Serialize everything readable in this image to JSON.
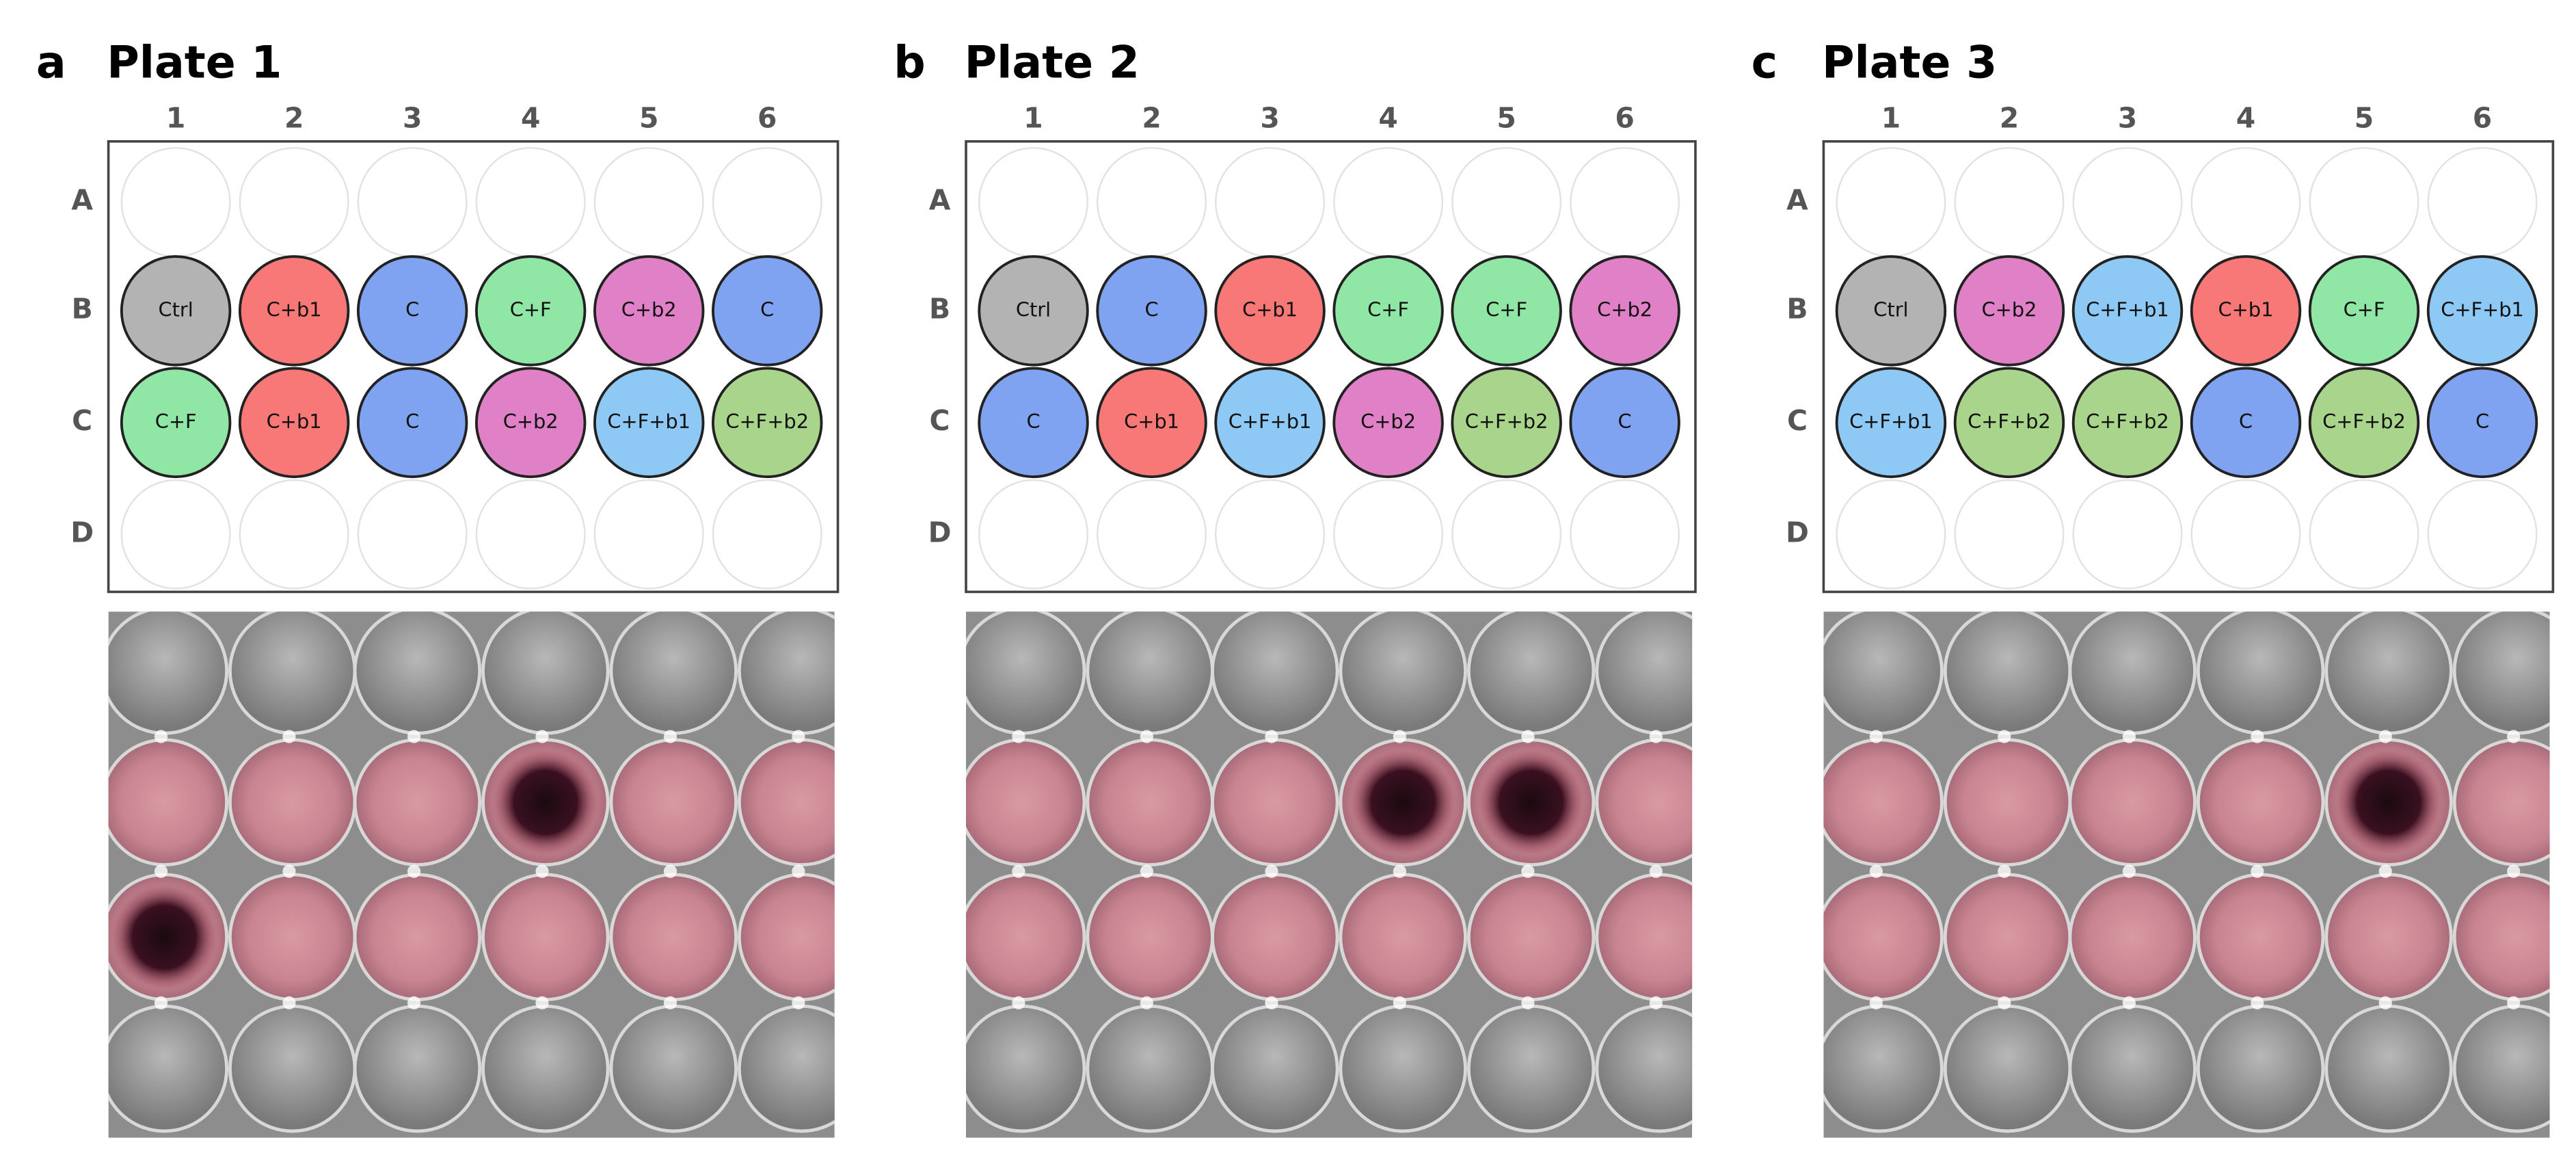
{
  "panels": [
    {
      "letter": "a",
      "title": "Plate 1",
      "columns": [
        "1",
        "2",
        "3",
        "4",
        "5",
        "6"
      ],
      "rows": [
        {
          "label": "A",
          "wells": []
        },
        {
          "label": "B",
          "wells": [
            {
              "label": "Ctrl",
              "color": "#b3b3b3"
            },
            {
              "label": "C+b1",
              "color": "#f87878"
            },
            {
              "label": "C",
              "color": "#7fa3f0"
            },
            {
              "label": "C+F",
              "color": "#8fe6a5"
            },
            {
              "label": "C+b2",
              "color": "#e080c6"
            },
            {
              "label": "C",
              "color": "#7fa3f0"
            }
          ]
        },
        {
          "label": "C",
          "wells": [
            {
              "label": "C+F",
              "color": "#8fe6a5"
            },
            {
              "label": "C+b1",
              "color": "#f87878"
            },
            {
              "label": "C",
              "color": "#7fa3f0"
            },
            {
              "label": "C+b2",
              "color": "#e080c6"
            },
            {
              "label": "C+F+b1",
              "color": "#8ec9f6"
            },
            {
              "label": "C+F+b2",
              "color": "#a9d48b"
            }
          ]
        },
        {
          "label": "D",
          "wells": []
        }
      ]
    },
    {
      "letter": "b",
      "title": "Plate 2",
      "columns": [
        "1",
        "2",
        "3",
        "4",
        "5",
        "6"
      ],
      "rows": [
        {
          "label": "A",
          "wells": []
        },
        {
          "label": "B",
          "wells": [
            {
              "label": "Ctrl",
              "color": "#b3b3b3"
            },
            {
              "label": "C",
              "color": "#7fa3f0"
            },
            {
              "label": "C+b1",
              "color": "#f87878"
            },
            {
              "label": "C+F",
              "color": "#8fe6a5"
            },
            {
              "label": "C+F",
              "color": "#8fe6a5"
            },
            {
              "label": "C+b2",
              "color": "#e080c6"
            }
          ]
        },
        {
          "label": "C",
          "wells": [
            {
              "label": "C",
              "color": "#7fa3f0"
            },
            {
              "label": "C+b1",
              "color": "#f87878"
            },
            {
              "label": "C+F+b1",
              "color": "#8ec9f6"
            },
            {
              "label": "C+b2",
              "color": "#e080c6"
            },
            {
              "label": "C+F+b2",
              "color": "#a9d48b"
            },
            {
              "label": "C",
              "color": "#7fa3f0"
            }
          ]
        },
        {
          "label": "D",
          "wells": []
        }
      ]
    },
    {
      "letter": "c",
      "title": "Plate 3",
      "columns": [
        "1",
        "2",
        "3",
        "4",
        "5",
        "6"
      ],
      "rows": [
        {
          "label": "A",
          "wells": []
        },
        {
          "label": "B",
          "wells": [
            {
              "label": "Ctrl",
              "color": "#b3b3b3"
            },
            {
              "label": "C+b2",
              "color": "#e080c6"
            },
            {
              "label": "C+F+b1",
              "color": "#8ec9f6"
            },
            {
              "label": "C+b1",
              "color": "#f87878"
            },
            {
              "label": "C+F",
              "color": "#8fe6a5"
            },
            {
              "label": "C+F+b1",
              "color": "#8ec9f6"
            }
          ]
        },
        {
          "label": "C",
          "wells": [
            {
              "label": "C+F+b1",
              "color": "#8ec9f6"
            },
            {
              "label": "C+F+b2",
              "color": "#a9d48b"
            },
            {
              "label": "C+F+b2",
              "color": "#a9d48b"
            },
            {
              "label": "C",
              "color": "#7fa3f0"
            },
            {
              "label": "C+F+b2",
              "color": "#a9d48b"
            },
            {
              "label": "C",
              "color": "#7fa3f0"
            }
          ]
        },
        {
          "label": "D",
          "wells": []
        }
      ]
    }
  ]
}
